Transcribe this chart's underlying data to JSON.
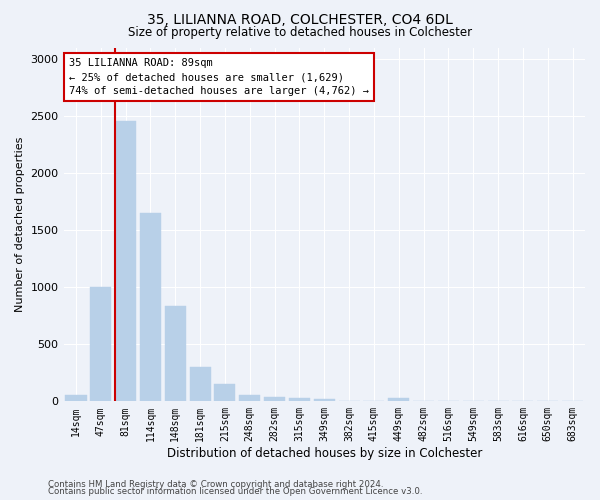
{
  "title1": "35, LILIANNA ROAD, COLCHESTER, CO4 6DL",
  "title2": "Size of property relative to detached houses in Colchester",
  "xlabel": "Distribution of detached houses by size in Colchester",
  "ylabel": "Number of detached properties",
  "bar_labels": [
    "14sqm",
    "47sqm",
    "81sqm",
    "114sqm",
    "148sqm",
    "181sqm",
    "215sqm",
    "248sqm",
    "282sqm",
    "315sqm",
    "349sqm",
    "382sqm",
    "415sqm",
    "449sqm",
    "482sqm",
    "516sqm",
    "549sqm",
    "583sqm",
    "616sqm",
    "650sqm",
    "683sqm"
  ],
  "bar_values": [
    55,
    1000,
    2460,
    1650,
    835,
    300,
    150,
    55,
    40,
    30,
    20,
    0,
    0,
    30,
    0,
    0,
    0,
    0,
    0,
    0,
    0
  ],
  "bar_color": "#b8d0e8",
  "bar_edgecolor": "#b8d0e8",
  "highlight_bar_index": 2,
  "highlight_color": "#cc0000",
  "annotation_text": "35 LILIANNA ROAD: 89sqm\n← 25% of detached houses are smaller (1,629)\n74% of semi-detached houses are larger (4,762) →",
  "annotation_box_edgecolor": "#cc0000",
  "ylim": [
    0,
    3100
  ],
  "yticks": [
    0,
    500,
    1000,
    1500,
    2000,
    2500,
    3000
  ],
  "footer1": "Contains HM Land Registry data © Crown copyright and database right 2024.",
  "footer2": "Contains public sector information licensed under the Open Government Licence v3.0.",
  "bg_color": "#eef2f9",
  "grid_color": "#ffffff"
}
